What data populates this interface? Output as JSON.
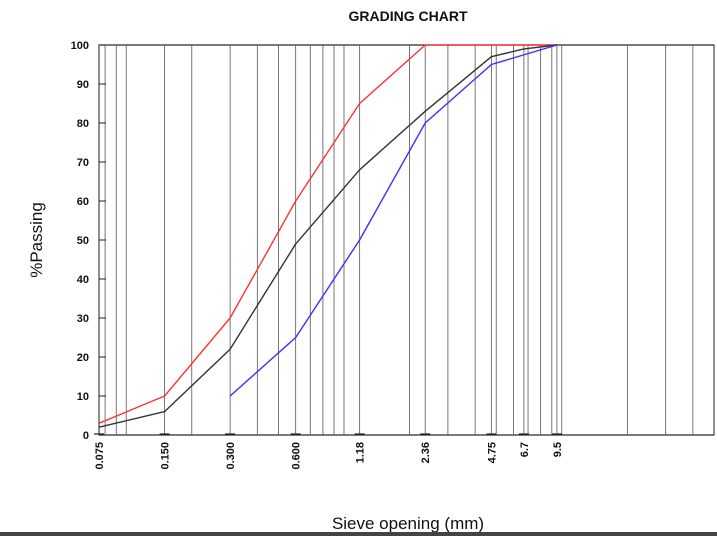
{
  "chart_data": {
    "type": "line",
    "title": "GRADING CHART",
    "xlabel": "Sieve opening (mm)",
    "ylabel": "%Passing",
    "xscale": "log",
    "xlim": [
      0.075,
      50
    ],
    "ylim": [
      0,
      100
    ],
    "yticks": [
      0,
      10,
      20,
      30,
      40,
      50,
      60,
      70,
      80,
      90,
      100
    ],
    "xtick_labels": [
      {
        "value": 0.075,
        "label": "0.075"
      },
      {
        "value": 0.15,
        "label": "0.150"
      },
      {
        "value": 0.3,
        "label": "0.300"
      },
      {
        "value": 0.6,
        "label": "0.600"
      },
      {
        "value": 1.18,
        "label": "1.18"
      },
      {
        "value": 2.36,
        "label": "2.36"
      },
      {
        "value": 4.75,
        "label": "4.75"
      },
      {
        "value": 6.7,
        "label": "6.7"
      },
      {
        "value": 9.5,
        "label": "9.5"
      }
    ],
    "grid_verticals": [
      0.075,
      0.08,
      0.09,
      0.1,
      0.15,
      0.2,
      0.3,
      0.4,
      0.5,
      0.6,
      0.7,
      0.8,
      0.9,
      1,
      1.18,
      2,
      2.36,
      3,
      4,
      4.75,
      5,
      6,
      6.7,
      7,
      8,
      9,
      9.5,
      10,
      20,
      30,
      40,
      50
    ],
    "series": [
      {
        "color": "#ff3333",
        "x": [
          0.075,
          0.15,
          0.3,
          0.6,
          1.18,
          2.36,
          4.75,
          9.5
        ],
        "y": [
          3,
          10,
          30,
          60,
          85,
          100,
          100,
          100
        ]
      },
      {
        "color": "#333333",
        "x": [
          0.075,
          0.15,
          0.3,
          0.6,
          1.18,
          2.36,
          4.75,
          6.7,
          9.5
        ],
        "y": [
          2,
          6,
          22,
          49,
          68,
          83,
          97,
          99,
          100
        ]
      },
      {
        "color": "#3333ff",
        "x": [
          0.3,
          0.6,
          1.18,
          2.36,
          4.75,
          9.5
        ],
        "y": [
          10,
          25,
          50,
          80,
          95,
          100
        ]
      }
    ]
  }
}
